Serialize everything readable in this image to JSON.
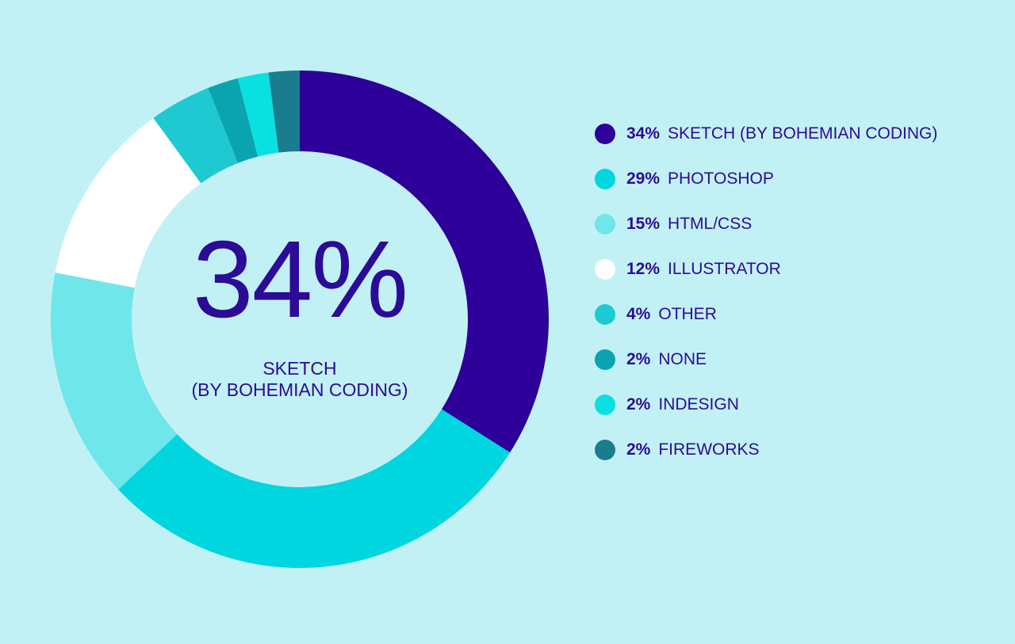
{
  "chart_data": {
    "type": "pie",
    "style": "donut",
    "categories": [
      "SKETCH (BY BOHEMIAN CODING)",
      "PHOTOSHOP",
      "HTML/CSS",
      "ILLUSTRATOR",
      "OTHER",
      "NONE",
      "INDESIGN",
      "FIREWORKS"
    ],
    "values": [
      34,
      29,
      15,
      12,
      4,
      2,
      2,
      2
    ],
    "value_labels": [
      "34%",
      "29%",
      "15%",
      "12%",
      "4%",
      "2%",
      "2%",
      "2%"
    ],
    "colors": [
      "#2c0099",
      "#00d6df",
      "#6ee6ea",
      "#ffffff",
      "#1ec9d2",
      "#0aa3b0",
      "#0ae0e0",
      "#1a7d8f"
    ],
    "legend_position": "right",
    "center_value": "34%",
    "center_label_line1": "SKETCH",
    "center_label_line2": "(BY BOHEMIAN CODING)"
  },
  "colors": {
    "background": "#c2f1f5",
    "text": "#2c0b97"
  }
}
